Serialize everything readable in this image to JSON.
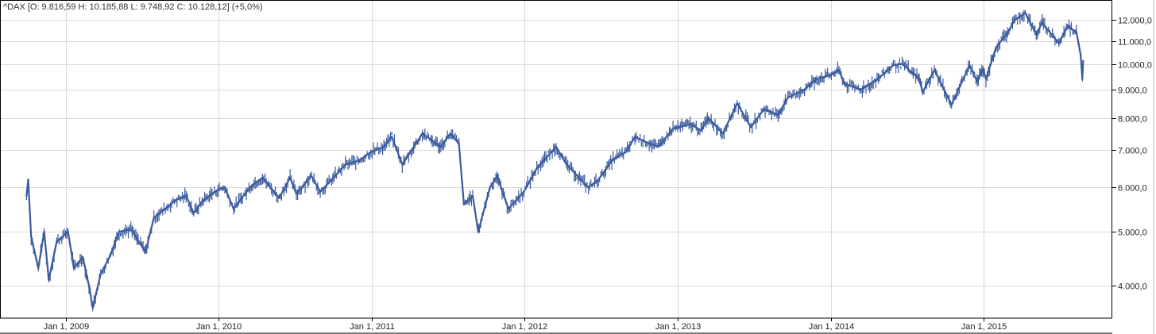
{
  "header": {
    "quote_text": "^DAX [O: 9.816,59  H: 10.185,88  L: 9.748,92  C: 10.128,12] (+5,0%)"
  },
  "chart_data": {
    "type": "line",
    "style": "ohlc",
    "title": "",
    "series_color": "#3a5a9c",
    "grid": true,
    "y_scale": "log",
    "ylim": [
      3450,
      12800
    ],
    "y_axis_position": "right",
    "y_ticks": [
      {
        "value": 4000,
        "label": "4.000,0"
      },
      {
        "value": 5000,
        "label": "5.000,0"
      },
      {
        "value": 6000,
        "label": "6.000,0"
      },
      {
        "value": 7000,
        "label": "7.000,0"
      },
      {
        "value": 8000,
        "label": "8.000,0"
      },
      {
        "value": 9000,
        "label": "9.000,0"
      },
      {
        "value": 10000,
        "label": "10.000,0"
      },
      {
        "value": 11000,
        "label": "11.000,0"
      },
      {
        "value": 12000,
        "label": "12.000,0"
      }
    ],
    "xlim": [
      "2008-08-15",
      "2015-10-25"
    ],
    "x_ticks": [
      {
        "date": "2009-01-01",
        "label": "Jan 1, 2009"
      },
      {
        "date": "2010-01-01",
        "label": "Jan 1, 2010"
      },
      {
        "date": "2011-01-01",
        "label": "Jan 1, 2011"
      },
      {
        "date": "2012-01-01",
        "label": "Jan 1, 2012"
      },
      {
        "date": "2013-01-01",
        "label": "Jan 1, 2013"
      },
      {
        "date": "2014-01-01",
        "label": "Jan 1, 2014"
      },
      {
        "date": "2015-01-01",
        "label": "Jan 1, 2015"
      }
    ],
    "points": [
      [
        "2008-09-29",
        5800
      ],
      [
        "2008-10-03",
        6200
      ],
      [
        "2008-10-10",
        4900
      ],
      [
        "2008-10-27",
        4300
      ],
      [
        "2008-11-10",
        5000
      ],
      [
        "2008-11-21",
        4100
      ],
      [
        "2008-12-10",
        4800
      ],
      [
        "2009-01-06",
        5000
      ],
      [
        "2009-01-20",
        4300
      ],
      [
        "2009-02-10",
        4500
      ],
      [
        "2009-02-25",
        4000
      ],
      [
        "2009-03-06",
        3650
      ],
      [
        "2009-03-25",
        4200
      ],
      [
        "2009-04-15",
        4500
      ],
      [
        "2009-05-08",
        5000
      ],
      [
        "2009-06-05",
        5050
      ],
      [
        "2009-07-10",
        4600
      ],
      [
        "2009-07-30",
        5300
      ],
      [
        "2009-08-20",
        5450
      ],
      [
        "2009-09-20",
        5700
      ],
      [
        "2009-10-15",
        5800
      ],
      [
        "2009-11-02",
        5400
      ],
      [
        "2009-11-25",
        5700
      ],
      [
        "2009-12-30",
        5950
      ],
      [
        "2010-01-15",
        6000
      ],
      [
        "2010-02-05",
        5500
      ],
      [
        "2010-03-20",
        6050
      ],
      [
        "2010-04-15",
        6250
      ],
      [
        "2010-05-25",
        5750
      ],
      [
        "2010-06-20",
        6250
      ],
      [
        "2010-07-05",
        5850
      ],
      [
        "2010-08-10",
        6300
      ],
      [
        "2010-08-31",
        5900
      ],
      [
        "2010-09-30",
        6230
      ],
      [
        "2010-10-30",
        6600
      ],
      [
        "2010-11-30",
        6700
      ],
      [
        "2010-12-30",
        6950
      ],
      [
        "2011-01-30",
        7100
      ],
      [
        "2011-02-18",
        7400
      ],
      [
        "2011-03-15",
        6600
      ],
      [
        "2011-05-02",
        7500
      ],
      [
        "2011-06-15",
        7100
      ],
      [
        "2011-07-07",
        7500
      ],
      [
        "2011-07-28",
        7200
      ],
      [
        "2011-08-09",
        5600
      ],
      [
        "2011-08-30",
        5800
      ],
      [
        "2011-09-12",
        5000
      ],
      [
        "2011-10-10",
        6000
      ],
      [
        "2011-10-27",
        6300
      ],
      [
        "2011-11-23",
        5500
      ],
      [
        "2011-12-30",
        5900
      ],
      [
        "2012-01-30",
        6500
      ],
      [
        "2012-03-16",
        7100
      ],
      [
        "2012-04-10",
        6600
      ],
      [
        "2012-06-01",
        6000
      ],
      [
        "2012-06-25",
        6200
      ],
      [
        "2012-07-30",
        6750
      ],
      [
        "2012-08-30",
        6950
      ],
      [
        "2012-09-20",
        7400
      ],
      [
        "2012-10-15",
        7250
      ],
      [
        "2012-11-15",
        7100
      ],
      [
        "2012-12-20",
        7650
      ],
      [
        "2013-01-30",
        7800
      ],
      [
        "2013-02-25",
        7600
      ],
      [
        "2013-03-15",
        8000
      ],
      [
        "2013-04-18",
        7500
      ],
      [
        "2013-05-22",
        8500
      ],
      [
        "2013-06-24",
        7700
      ],
      [
        "2013-07-25",
        8300
      ],
      [
        "2013-08-28",
        8100
      ],
      [
        "2013-09-20",
        8700
      ],
      [
        "2013-10-30",
        9000
      ],
      [
        "2013-11-28",
        9400
      ],
      [
        "2013-12-30",
        9550
      ],
      [
        "2014-01-20",
        9750
      ],
      [
        "2014-02-03",
        9200
      ],
      [
        "2014-03-14",
        9000
      ],
      [
        "2014-04-15",
        9300
      ],
      [
        "2014-05-30",
        9950
      ],
      [
        "2014-06-20",
        10000
      ],
      [
        "2014-07-31",
        9400
      ],
      [
        "2014-08-08",
        8900
      ],
      [
        "2014-09-05",
        9750
      ],
      [
        "2014-10-16",
        8450
      ],
      [
        "2014-11-28",
        9950
      ],
      [
        "2014-12-16",
        9300
      ],
      [
        "2014-12-30",
        9800
      ],
      [
        "2015-01-06",
        9400
      ],
      [
        "2015-01-30",
        10700
      ],
      [
        "2015-02-27",
        11400
      ],
      [
        "2015-03-16",
        12000
      ],
      [
        "2015-04-10",
        12350
      ],
      [
        "2015-05-06",
        11300
      ],
      [
        "2015-05-20",
        11850
      ],
      [
        "2015-06-29",
        10900
      ],
      [
        "2015-07-20",
        11700
      ],
      [
        "2015-08-10",
        11400
      ],
      [
        "2015-08-20",
        10400
      ],
      [
        "2015-08-24",
        9400
      ],
      [
        "2015-08-26",
        10128
      ]
    ]
  }
}
